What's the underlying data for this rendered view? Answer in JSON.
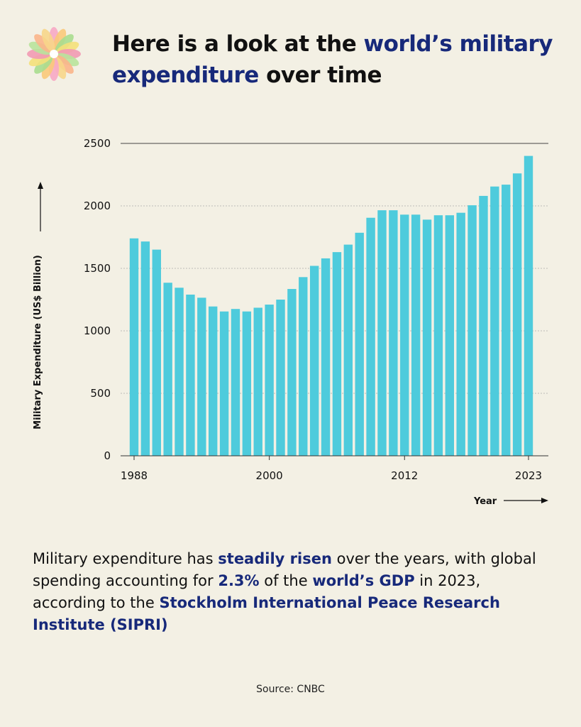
{
  "header": {
    "title_parts": [
      {
        "text": "Here is a look at the ",
        "highlight": false
      },
      {
        "text": "world’s military expenditure",
        "highlight": true
      },
      {
        "text": " over time",
        "highlight": false
      }
    ]
  },
  "chart_data": {
    "type": "bar",
    "bar_color": "#4ecbdc",
    "x": [
      1988,
      1989,
      1990,
      1991,
      1992,
      1993,
      1994,
      1995,
      1996,
      1997,
      1998,
      1999,
      2000,
      2001,
      2002,
      2003,
      2004,
      2005,
      2006,
      2007,
      2008,
      2009,
      2010,
      2011,
      2012,
      2013,
      2014,
      2015,
      2016,
      2017,
      2018,
      2019,
      2020,
      2021,
      2022,
      2023
    ],
    "values": [
      1740,
      1715,
      1650,
      1385,
      1345,
      1290,
      1265,
      1195,
      1155,
      1175,
      1155,
      1185,
      1210,
      1250,
      1335,
      1430,
      1520,
      1580,
      1630,
      1690,
      1785,
      1905,
      1965,
      1965,
      1930,
      1930,
      1890,
      1925,
      1925,
      1945,
      2005,
      2080,
      2155,
      2170,
      2260,
      2400
    ],
    "x_tick_labels": [
      "1988",
      "2000",
      "2012",
      "2023"
    ],
    "x_tick_values": [
      1988,
      2000,
      2012,
      2023
    ],
    "y_ticks": [
      0,
      500,
      1000,
      1500,
      2000,
      2500
    ],
    "ylim": [
      0,
      2500
    ],
    "xlabel": "Year",
    "ylabel": "Military Expenditure (US$ Billion)",
    "grid": true
  },
  "caption": {
    "parts": [
      {
        "text": "Military expenditure has ",
        "bold": false
      },
      {
        "text": "steadily risen",
        "bold": true
      },
      {
        "text": " over the years, with global spending accounting for ",
        "bold": false
      },
      {
        "text": "2.3%",
        "bold": true
      },
      {
        "text": " of the ",
        "bold": false
      },
      {
        "text": "world’s GDP",
        "bold": true
      },
      {
        "text": " in 2023, according to the ",
        "bold": false
      },
      {
        "text": "Stockholm International Peace Research Institute (SIPRI)",
        "bold": true
      }
    ]
  },
  "footer": {
    "source": "Source: CNBC"
  },
  "colors": {
    "accent": "#17297a",
    "background": "#f3f0e4"
  },
  "logo": {
    "icon": "flower-logo-icon"
  }
}
